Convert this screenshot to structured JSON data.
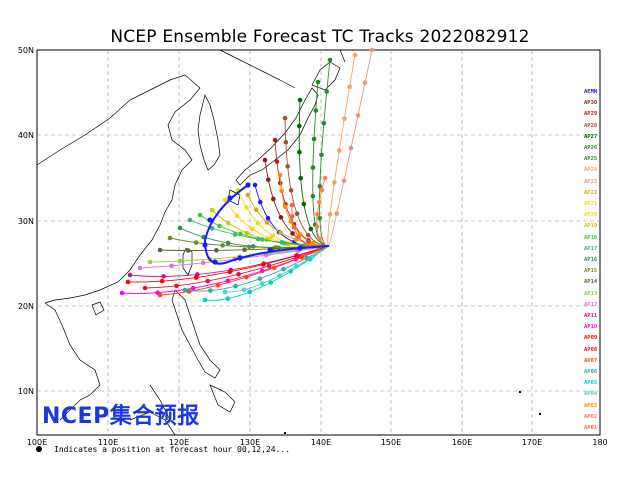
{
  "title": "NCEP Ensemble Forecast TC Tracks 2022082912",
  "watermark": "NCEP集合预报",
  "footnote": "Indicates a position at forecast hour 00,12,24...",
  "axes": {
    "lat_labels": [
      "50N",
      "40N",
      "30N",
      "20N",
      "10N"
    ],
    "lon_labels": [
      "100E",
      "110E",
      "120E",
      "130E",
      "140E",
      "150E",
      "160E",
      "170E",
      "180"
    ]
  },
  "legend": [
    {
      "label": "AEMN",
      "color": "#1a1aff"
    },
    {
      "label": "AP30",
      "color": "#8b1a1a"
    },
    {
      "label": "AP29",
      "color": "#b22222"
    },
    {
      "label": "AP28",
      "color": "#a0522d"
    },
    {
      "label": "AP27",
      "color": "#006400"
    },
    {
      "label": "AP26",
      "color": "#228b22"
    },
    {
      "label": "AP25",
      "color": "#2e8b2e"
    },
    {
      "label": "AP24",
      "color": "#f4a460"
    },
    {
      "label": "AP23",
      "color": "#e9967a"
    },
    {
      "label": "AP22",
      "color": "#daa520"
    },
    {
      "label": "AP21",
      "color": "#eedd11"
    },
    {
      "label": "AP20",
      "color": "#ffd700"
    },
    {
      "label": "AP19",
      "color": "#c8c800"
    },
    {
      "label": "AP18",
      "color": "#32cd32"
    },
    {
      "label": "AP17",
      "color": "#3cb371"
    },
    {
      "label": "AP16",
      "color": "#2e8b57"
    },
    {
      "label": "AP15",
      "color": "#6b8e23"
    },
    {
      "label": "AP14",
      "color": "#556b2f"
    },
    {
      "label": "AP13",
      "color": "#9acd32"
    },
    {
      "label": "AP12",
      "color": "#da70d6"
    },
    {
      "label": "AP11",
      "color": "#c71585"
    },
    {
      "label": "AP10",
      "color": "#ff00ff"
    },
    {
      "label": "AP09",
      "color": "#ff0000"
    },
    {
      "label": "AP08",
      "color": "#dc143c"
    },
    {
      "label": "AP07",
      "color": "#ff4500"
    },
    {
      "label": "AP06",
      "color": "#20b2aa"
    },
    {
      "label": "AP05",
      "color": "#00ced1"
    },
    {
      "label": "AP04",
      "color": "#48d1cc"
    },
    {
      "label": "AP03",
      "color": "#ff8c00"
    },
    {
      "label": "AP02",
      "color": "#ff7f50"
    },
    {
      "label": "AP01",
      "color": "#ff6347"
    }
  ]
}
